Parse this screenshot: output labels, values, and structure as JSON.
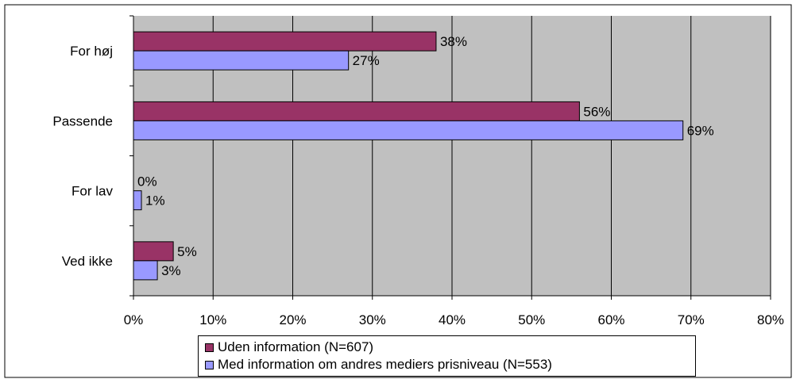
{
  "chart_data": {
    "type": "bar",
    "orientation": "horizontal",
    "categories": [
      "For høj",
      "Passende",
      "For lav",
      "Ved ikke"
    ],
    "series": [
      {
        "name": "Uden information (N=607)",
        "values": [
          38,
          56,
          0,
          5
        ],
        "labels": [
          "38%",
          "56%",
          "0%",
          "5%"
        ],
        "color": "#993366"
      },
      {
        "name": "Med information om andres mediers prisniveau (N=553)",
        "values": [
          27,
          69,
          1,
          3
        ],
        "labels": [
          "27%",
          "69%",
          "1%",
          "3%"
        ],
        "color": "#9999ff"
      }
    ],
    "xlim": [
      0,
      80
    ],
    "xticks": [
      "0%",
      "10%",
      "20%",
      "30%",
      "40%",
      "50%",
      "60%",
      "70%",
      "80%"
    ],
    "grid": true,
    "legend_position": "bottom",
    "plot_background": "#c0c0c0"
  }
}
